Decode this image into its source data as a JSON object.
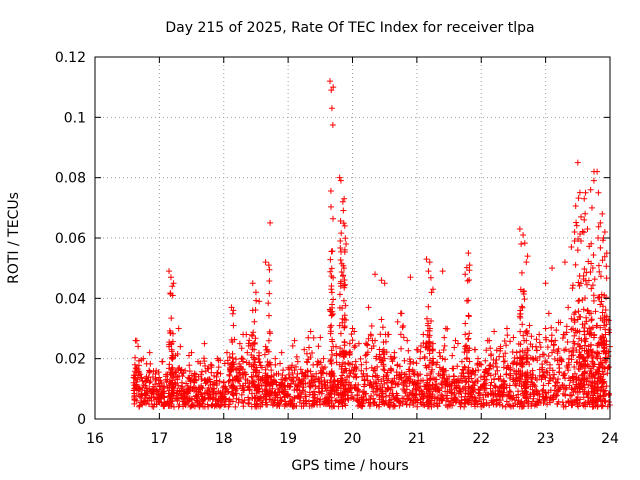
{
  "chart_data": {
    "type": "scatter",
    "title": "Day 215 of 2025, Rate Of TEC Index for receiver tlpa",
    "xlabel": "GPS time / hours",
    "ylabel": "ROTI / TECUs",
    "xlim": [
      16,
      24
    ],
    "ylim": [
      0,
      0.12
    ],
    "x_ticks": [
      "16",
      "17",
      "18",
      "19",
      "20",
      "21",
      "22",
      "23",
      "24"
    ],
    "y_ticks": [
      "0",
      "0.02",
      "0.04",
      "0.06",
      "0.08",
      "0.1",
      "0.12"
    ],
    "grid": true,
    "marker": "+",
    "color": "#ff0000",
    "series": [
      {
        "name": "ROTI",
        "x": [
          16.6,
          16.62,
          16.65,
          16.7,
          16.75,
          16.8,
          16.85,
          16.9,
          16.95,
          17.0,
          17.05,
          17.1,
          17.15,
          17.2,
          17.25,
          17.3,
          17.35,
          17.4,
          17.45,
          17.5,
          17.55,
          17.6,
          17.65,
          17.7,
          17.75,
          17.8,
          17.85,
          17.9,
          17.95,
          18.0,
          18.05,
          18.1,
          18.15,
          18.2,
          18.25,
          18.3,
          18.35,
          18.4,
          18.45,
          18.5,
          18.55,
          18.6,
          18.65,
          18.7,
          18.75,
          18.8,
          18.85,
          18.9,
          18.95,
          19.0,
          19.05,
          19.1,
          19.15,
          19.2,
          19.25,
          19.3,
          19.35,
          19.4,
          19.45,
          19.5,
          19.55,
          19.6,
          19.65,
          19.7,
          19.75,
          19.8,
          19.85,
          19.9,
          19.95,
          20.0,
          20.05,
          20.1,
          20.15,
          20.2,
          20.25,
          20.3,
          20.35,
          20.4,
          20.45,
          20.5,
          20.55,
          20.6,
          20.65,
          20.7,
          20.75,
          20.8,
          20.85,
          20.9,
          20.95,
          21.0,
          21.05,
          21.1,
          21.15,
          21.2,
          21.25,
          21.3,
          21.35,
          21.4,
          21.45,
          21.5,
          21.55,
          21.6,
          21.65,
          21.7,
          21.75,
          21.8,
          21.85,
          21.9,
          21.95,
          22.0,
          22.05,
          22.1,
          22.15,
          22.2,
          22.25,
          22.3,
          22.35,
          22.4,
          22.45,
          22.5,
          22.55,
          22.6,
          22.65,
          22.7,
          22.75,
          22.8,
          22.85,
          22.9,
          22.95,
          23.0,
          23.05,
          23.1,
          23.15,
          23.2,
          23.25,
          23.3,
          23.35,
          23.4,
          23.45,
          23.5,
          23.55,
          23.6,
          23.65,
          23.7,
          23.75,
          23.8,
          23.85,
          23.9,
          23.95,
          24.0,
          16.61,
          16.68,
          16.78,
          16.88,
          16.98,
          17.08,
          17.18,
          17.28,
          17.38,
          17.48,
          17.58,
          17.68,
          17.78,
          17.88,
          17.98,
          18.08,
          18.18,
          18.28,
          18.38,
          18.48,
          18.58,
          18.68,
          18.78,
          18.88,
          18.98,
          19.08,
          19.18,
          19.28,
          19.38,
          19.48,
          19.58,
          19.68,
          19.78,
          19.88,
          19.98,
          20.08,
          20.18,
          20.28,
          20.38,
          20.48,
          20.58,
          20.68,
          20.78,
          20.88,
          20.98,
          21.08,
          21.18,
          21.28,
          21.38,
          21.48,
          21.58,
          21.68,
          21.78,
          21.88,
          21.98,
          22.08,
          22.18,
          22.28,
          22.38,
          22.48,
          22.58,
          22.68,
          22.78,
          22.88,
          22.98,
          23.08,
          23.18,
          23.28,
          23.38,
          23.48,
          23.58,
          23.68,
          23.78,
          23.88,
          23.98,
          17.15,
          17.18,
          17.2,
          17.22,
          18.12,
          18.15,
          18.45,
          18.5,
          18.55,
          18.65,
          18.7,
          18.72,
          19.65,
          19.67,
          19.68,
          19.7,
          19.8,
          19.82,
          19.85,
          19.87,
          19.88,
          19.9,
          20.35,
          20.45,
          20.5,
          20.9,
          21.15,
          21.18,
          21.2,
          21.25,
          21.4,
          21.75,
          21.8,
          21.82,
          22.6,
          22.62,
          22.65,
          22.7,
          22.72,
          23.0,
          23.1,
          23.3,
          23.4,
          23.45,
          23.5,
          23.55,
          23.6,
          23.62,
          23.65,
          23.7,
          23.72,
          23.75,
          23.8,
          23.82,
          23.85,
          23.88,
          23.9,
          23.92,
          23.95,
          23.5,
          23.55,
          23.45,
          23.6
        ],
        "y": [
          0.012,
          0.018,
          0.026,
          0.01,
          0.02,
          0.014,
          0.022,
          0.009,
          0.016,
          0.011,
          0.019,
          0.013,
          0.024,
          0.017,
          0.021,
          0.03,
          0.012,
          0.016,
          0.009,
          0.022,
          0.014,
          0.019,
          0.011,
          0.025,
          0.013,
          0.018,
          0.01,
          0.02,
          0.015,
          0.012,
          0.022,
          0.017,
          0.031,
          0.014,
          0.025,
          0.019,
          0.028,
          0.012,
          0.036,
          0.016,
          0.021,
          0.013,
          0.024,
          0.018,
          0.009,
          0.02,
          0.015,
          0.022,
          0.011,
          0.017,
          0.013,
          0.026,
          0.019,
          0.012,
          0.023,
          0.016,
          0.029,
          0.014,
          0.018,
          0.027,
          0.02,
          0.015,
          0.012,
          0.024,
          0.021,
          0.018,
          0.013,
          0.022,
          0.016,
          0.03,
          0.019,
          0.025,
          0.014,
          0.021,
          0.037,
          0.017,
          0.026,
          0.013,
          0.033,
          0.02,
          0.028,
          0.016,
          0.022,
          0.018,
          0.035,
          0.012,
          0.026,
          0.019,
          0.015,
          0.023,
          0.02,
          0.028,
          0.017,
          0.013,
          0.025,
          0.018,
          0.022,
          0.016,
          0.03,
          0.014,
          0.021,
          0.026,
          0.012,
          0.019,
          0.024,
          0.017,
          0.015,
          0.023,
          0.02,
          0.018,
          0.013,
          0.026,
          0.021,
          0.029,
          0.016,
          0.024,
          0.019,
          0.03,
          0.015,
          0.027,
          0.022,
          0.034,
          0.018,
          0.026,
          0.031,
          0.02,
          0.024,
          0.028,
          0.017,
          0.03,
          0.035,
          0.022,
          0.026,
          0.032,
          0.019,
          0.028,
          0.037,
          0.021,
          0.025,
          0.033,
          0.018,
          0.029,
          0.036,
          0.023,
          0.027,
          0.031,
          0.02,
          0.025,
          0.034,
          0.024,
          0.005,
          0.008,
          0.007,
          0.006,
          0.009,
          0.005,
          0.008,
          0.006,
          0.007,
          0.004,
          0.009,
          0.006,
          0.008,
          0.005,
          0.007,
          0.006,
          0.004,
          0.008,
          0.005,
          0.007,
          0.006,
          0.009,
          0.005,
          0.006,
          0.008,
          0.004,
          0.007,
          0.006,
          0.005,
          0.009,
          0.006,
          0.004,
          0.008,
          0.005,
          0.007,
          0.006,
          0.009,
          0.005,
          0.008,
          0.006,
          0.004,
          0.007,
          0.005,
          0.008,
          0.006,
          0.009,
          0.005,
          0.007,
          0.006,
          0.004,
          0.008,
          0.005,
          0.006,
          0.009,
          0.007,
          0.005,
          0.006,
          0.008,
          0.004,
          0.007,
          0.006,
          0.009,
          0.005,
          0.008,
          0.006,
          0.007,
          0.005,
          0.004,
          0.008,
          0.006,
          0.009,
          0.005,
          0.007,
          0.006,
          0.008,
          0.049,
          0.047,
          0.044,
          0.045,
          0.037,
          0.036,
          0.045,
          0.042,
          0.039,
          0.052,
          0.051,
          0.065,
          0.112,
          0.109,
          0.103,
          0.11,
          0.08,
          0.079,
          0.072,
          0.073,
          0.064,
          0.058,
          0.048,
          0.046,
          0.045,
          0.047,
          0.053,
          0.049,
          0.052,
          0.043,
          0.049,
          0.048,
          0.055,
          0.051,
          0.063,
          0.058,
          0.061,
          0.052,
          0.054,
          0.045,
          0.05,
          0.052,
          0.057,
          0.062,
          0.085,
          0.067,
          0.073,
          0.075,
          0.063,
          0.076,
          0.07,
          0.079,
          0.082,
          0.075,
          0.065,
          0.068,
          0.06,
          0.062,
          0.055,
          0.056,
          0.059,
          0.059,
          0.066
        ]
      }
    ]
  }
}
